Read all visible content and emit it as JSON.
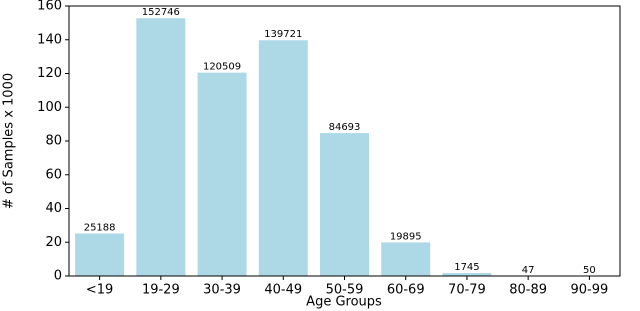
{
  "chart_data": {
    "type": "bar",
    "categories": [
      "<19",
      "19-29",
      "30-39",
      "40-49",
      "50-59",
      "60-69",
      "70-79",
      "80-89",
      "90-99"
    ],
    "values": [
      25.188,
      152.746,
      120.509,
      139.721,
      84.693,
      19.895,
      1.745,
      0.047,
      0.05
    ],
    "value_labels": [
      "25188",
      "152746",
      "120509",
      "139721",
      "84693",
      "19895",
      "1745",
      "47",
      "50"
    ],
    "color": "#add8e6",
    "x_label": "Age Groups",
    "y_label": "# of Samples x 1000",
    "ylim": [
      0,
      160
    ],
    "yticks": [
      0,
      20,
      40,
      60,
      80,
      100,
      120,
      140,
      160
    ]
  }
}
